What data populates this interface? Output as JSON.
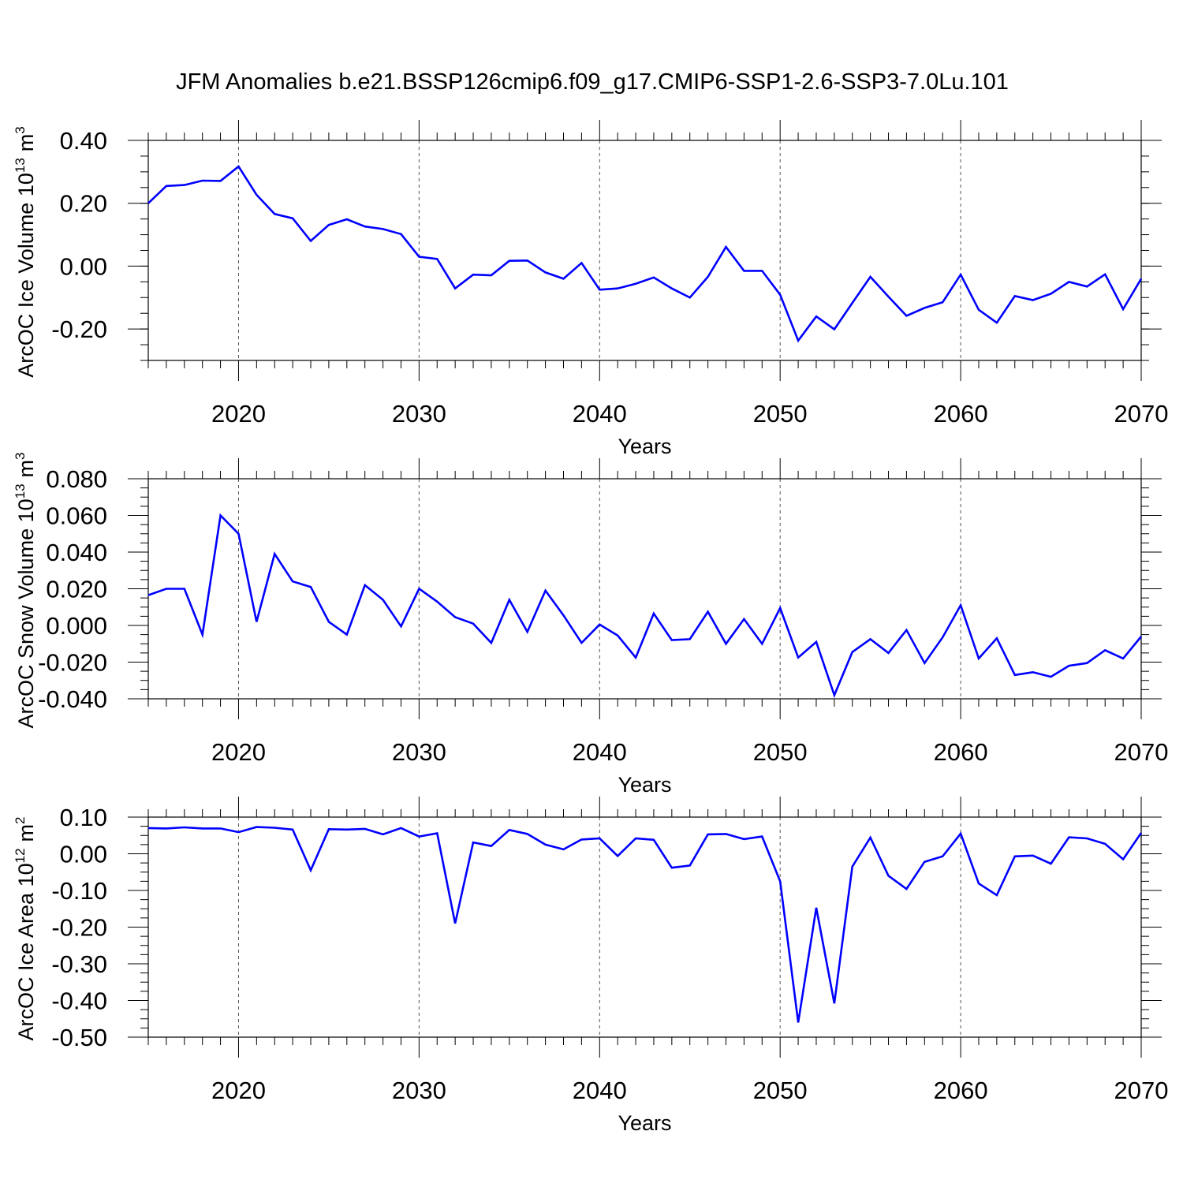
{
  "title": "JFM Anomalies b.e21.BSSP126cmip6.f09_g17.CMIP6-SSP1-2.6-SSP3-7.0Lu.101",
  "colors": {
    "line": "#0000ff",
    "axis": "#000000",
    "grid": "#555555"
  },
  "chart_data": [
    {
      "type": "line",
      "ylabel": "ArcOC Ice Volume 10",
      "ylabel_exp": "13",
      "ylabel_unit": "m",
      "ylabel_unit_exp": "3",
      "xlabel": "Years",
      "xlim": [
        2015,
        2070
      ],
      "ylim": [
        -0.3,
        0.4
      ],
      "x_ticks": [
        "2020",
        "2030",
        "2040",
        "2050",
        "2060",
        "2070"
      ],
      "y_ticks": [
        "0.40",
        "0.20",
        "0.00",
        "-0.20"
      ],
      "y_tick_values": [
        0.4,
        0.2,
        0.0,
        -0.2
      ],
      "y_minor_step": 0.05,
      "x_start": 2015,
      "values": [
        0.2,
        0.255,
        0.258,
        0.272,
        0.271,
        0.317,
        0.227,
        0.166,
        0.152,
        0.08,
        0.131,
        0.149,
        0.126,
        0.118,
        0.102,
        0.03,
        0.023,
        -0.071,
        -0.027,
        -0.029,
        0.017,
        0.018,
        -0.02,
        -0.04,
        0.01,
        -0.075,
        -0.071,
        -0.056,
        -0.036,
        -0.071,
        -0.1,
        -0.034,
        0.061,
        -0.015,
        -0.015,
        -0.091,
        -0.237,
        -0.16,
        -0.201,
        -0.117,
        -0.034,
        -0.097,
        -0.158,
        -0.133,
        -0.115,
        -0.027,
        -0.139,
        -0.18,
        -0.095,
        -0.108,
        -0.088,
        -0.05,
        -0.065,
        -0.026,
        -0.137,
        -0.04
      ]
    },
    {
      "type": "line",
      "ylabel": "ArcOC Snow Volume 10",
      "ylabel_exp": "13",
      "ylabel_unit": "m",
      "ylabel_unit_exp": "3",
      "xlabel": "Years",
      "xlim": [
        2015,
        2070
      ],
      "ylim": [
        -0.04,
        0.08
      ],
      "x_ticks": [
        "2020",
        "2030",
        "2040",
        "2050",
        "2060",
        "2070"
      ],
      "y_ticks": [
        "0.080",
        "0.060",
        "0.040",
        "0.020",
        "0.000",
        "-0.020",
        "-0.040"
      ],
      "y_tick_values": [
        0.08,
        0.06,
        0.04,
        0.02,
        0.0,
        -0.02,
        -0.04
      ],
      "y_minor_step": 0.005,
      "x_start": 2015,
      "values": [
        0.0165,
        0.02,
        0.02,
        -0.005,
        0.06,
        0.05,
        0.002,
        0.039,
        0.024,
        0.021,
        0.002,
        -0.005,
        0.022,
        0.014,
        -0.0005,
        0.02,
        0.013,
        0.0045,
        0.001,
        -0.0095,
        0.014,
        -0.0035,
        0.019,
        0.0055,
        -0.0095,
        0.0005,
        -0.0055,
        -0.0175,
        0.0065,
        -0.008,
        -0.0075,
        0.0075,
        -0.01,
        0.0035,
        -0.01,
        0.0095,
        -0.0175,
        -0.009,
        -0.038,
        -0.0145,
        -0.0075,
        -0.015,
        -0.0025,
        -0.0205,
        -0.0065,
        0.011,
        -0.018,
        -0.007,
        -0.027,
        -0.0255,
        -0.028,
        -0.022,
        -0.0205,
        -0.0135,
        -0.018,
        -0.006
      ]
    },
    {
      "type": "line",
      "ylabel": "ArcOC Ice Area 10",
      "ylabel_exp": "12",
      "ylabel_unit": "m",
      "ylabel_unit_exp": "2",
      "xlabel": "Years",
      "xlim": [
        2015,
        2070
      ],
      "ylim": [
        -0.5,
        0.1
      ],
      "x_ticks": [
        "2020",
        "2030",
        "2040",
        "2050",
        "2060",
        "2070"
      ],
      "y_ticks": [
        "0.10",
        "0.00",
        "-0.10",
        "-0.20",
        "-0.30",
        "-0.40",
        "-0.50"
      ],
      "y_tick_values": [
        0.1,
        0.0,
        -0.1,
        -0.2,
        -0.3,
        -0.4,
        -0.5
      ],
      "y_minor_step": 0.025,
      "x_start": 2015,
      "values": [
        0.07,
        0.069,
        0.072,
        0.069,
        0.069,
        0.059,
        0.073,
        0.071,
        0.066,
        -0.045,
        0.067,
        0.066,
        0.068,
        0.053,
        0.07,
        0.047,
        0.056,
        -0.19,
        0.031,
        0.021,
        0.065,
        0.054,
        0.025,
        0.012,
        0.039,
        0.042,
        -0.006,
        0.042,
        0.038,
        -0.038,
        -0.032,
        0.053,
        0.054,
        0.04,
        0.047,
        -0.075,
        -0.46,
        -0.147,
        -0.408,
        -0.035,
        0.044,
        -0.06,
        -0.096,
        -0.022,
        -0.007,
        0.055,
        -0.081,
        -0.113,
        -0.007,
        -0.005,
        -0.027,
        0.045,
        0.042,
        0.027,
        -0.015,
        0.057
      ]
    }
  ]
}
